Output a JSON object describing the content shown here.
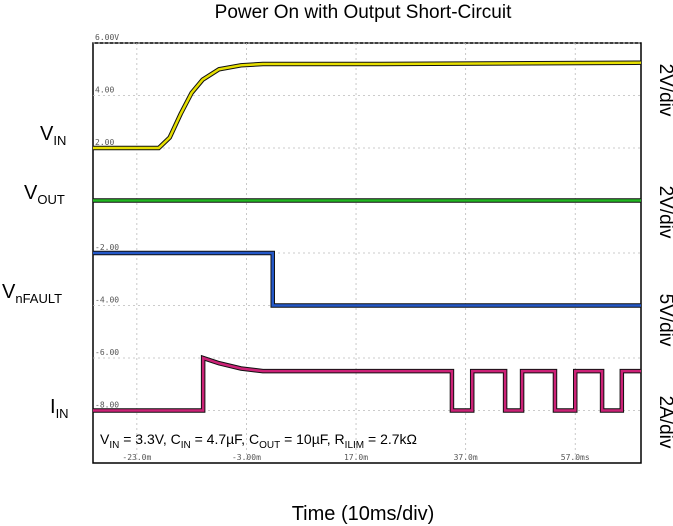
{
  "chart_data": {
    "type": "line",
    "title": "Power On with Output Short-Circuit",
    "xlabel": "Time (10ms/div)",
    "xlim": [
      -31,
      69
    ],
    "xticks": [
      {
        "value": -23,
        "label": "-23.0m"
      },
      {
        "value": -3,
        "label": "-3.00m"
      },
      {
        "value": 17,
        "label": "17.0m"
      },
      {
        "value": 37,
        "label": "37.0m"
      },
      {
        "value": 57,
        "label": "57.0ms"
      }
    ],
    "ylim": [
      -10,
      6
    ],
    "yticks": [
      {
        "value": 6,
        "label": "6.00V"
      },
      {
        "value": 4,
        "label": "4.00"
      },
      {
        "value": 2,
        "label": "2.00"
      },
      {
        "value": -2,
        "label": "-2.00"
      },
      {
        "value": -4,
        "label": "-4.00"
      },
      {
        "value": -6,
        "label": "-6.00"
      },
      {
        "value": -8,
        "label": "-8.00"
      }
    ],
    "grid": true,
    "series": [
      {
        "name": "V",
        "subscript": "IN",
        "scale": "2V/div",
        "color": "#e6df00",
        "x": [
          -31,
          -19,
          -17,
          -15,
          -13,
          -11,
          -8,
          -4,
          0,
          20,
          69
        ],
        "values": [
          2,
          2,
          2.4,
          3.3,
          4.1,
          4.6,
          5.0,
          5.15,
          5.2,
          5.2,
          5.25
        ]
      },
      {
        "name": "V",
        "subscript": "OUT",
        "scale": "2V/div",
        "color": "#22b822",
        "x": [
          -31,
          69
        ],
        "values": [
          0,
          0
        ]
      },
      {
        "name": "V",
        "subscript": "nFAULT",
        "scale": "5V/div",
        "color": "#2458c8",
        "x": [
          -31,
          1.8,
          1.8,
          69
        ],
        "values": [
          -2,
          -2,
          -4,
          -4
        ]
      },
      {
        "name": "I",
        "subscript": "IN",
        "scale": "2A/div",
        "color": "#cc2277",
        "x": [
          -31,
          -10.9,
          -10.9,
          -8,
          -4,
          0,
          34.5,
          34.5,
          38.2,
          38.2,
          44.2,
          44.2,
          47.3,
          47.3,
          53.3,
          53.3,
          57,
          57,
          61.9,
          61.9,
          65.5,
          65.5,
          69
        ],
        "values": [
          -8,
          -8,
          -6,
          -6.2,
          -6.4,
          -6.5,
          -6.5,
          -8,
          -8,
          -6.5,
          -6.5,
          -8,
          -8,
          -6.5,
          -6.5,
          -8,
          -8,
          -6.5,
          -6.5,
          -8,
          -8,
          -6.5,
          -6.5
        ]
      }
    ],
    "annotation": [
      {
        "text": "V",
        "subscript": "IN"
      },
      {
        "text": " = 3.3V, C",
        "subscript": "IN"
      },
      {
        "text": " = 4.7µF, C",
        "subscript": "OUT"
      },
      {
        "text": " = 10µF, R",
        "subscript": "ILIM"
      },
      {
        "text": " = 2.7kΩ"
      }
    ]
  }
}
